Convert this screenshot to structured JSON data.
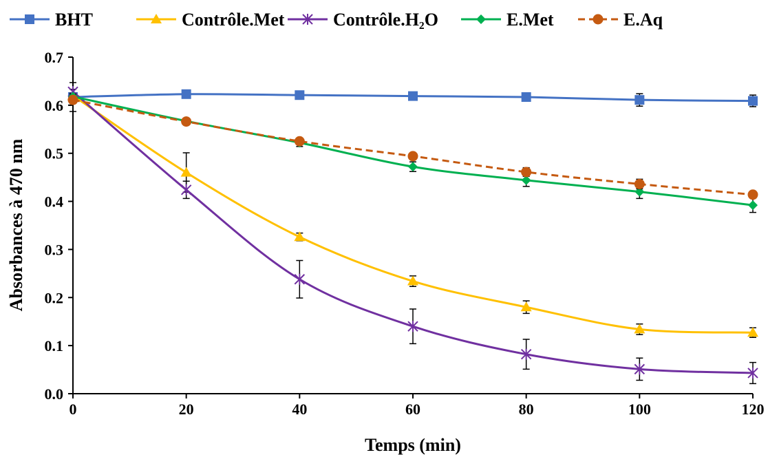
{
  "chart_data": {
    "type": "line",
    "xlabel": "Temps (min)",
    "ylabel": "Absorbances à 470 nm",
    "xlim": [
      0,
      120
    ],
    "ylim": [
      0,
      0.7
    ],
    "x_ticks": [
      "0",
      "20",
      "40",
      "60",
      "80",
      "100",
      "120"
    ],
    "y_ticks": [
      "0.0",
      "0.1",
      "0.2",
      "0.3",
      "0.4",
      "0.5",
      "0.6",
      "0.7"
    ],
    "grid": false,
    "legend_position": "top",
    "x": [
      0,
      20,
      40,
      60,
      80,
      100,
      120
    ],
    "series": [
      {
        "name": "BHT",
        "marker": "square",
        "dashed": false,
        "color": "#4472C4",
        "values": [
          0.617,
          0.623,
          0.621,
          0.619,
          0.617,
          0.611,
          0.609
        ],
        "errors": [
          0.03,
          0.005,
          0.005,
          0.005,
          0.005,
          0.013,
          0.012
        ]
      },
      {
        "name": "Contrôle.Met",
        "marker": "triangle",
        "dashed": false,
        "color": "#FFC000",
        "values": [
          0.62,
          0.46,
          0.326,
          0.234,
          0.18,
          0.134,
          0.127
        ],
        "errors": [
          0.005,
          0.041,
          0.008,
          0.011,
          0.013,
          0.011,
          0.01
        ]
      },
      {
        "name": "Contrôle.H₂O",
        "marker": "star",
        "dashed": false,
        "color": "#7030A0",
        "values": [
          0.628,
          0.424,
          0.238,
          0.14,
          0.082,
          0.051,
          0.043
        ],
        "errors": [
          0.005,
          0.018,
          0.039,
          0.036,
          0.031,
          0.023,
          0.022
        ]
      },
      {
        "name": "E.Met",
        "marker": "diamond",
        "dashed": false,
        "color": "#00B050",
        "values": [
          0.618,
          0.567,
          0.522,
          0.472,
          0.444,
          0.42,
          0.392
        ],
        "errors": [
          0.005,
          0.005,
          0.008,
          0.01,
          0.013,
          0.014,
          0.015
        ]
      },
      {
        "name": "E.Aq",
        "marker": "circle",
        "dashed": true,
        "color": "#C55A11",
        "values": [
          0.611,
          0.566,
          0.525,
          0.494,
          0.461,
          0.436,
          0.414
        ],
        "errors": [
          0.005,
          0.005,
          0.005,
          0.006,
          0.009,
          0.01,
          0.007
        ]
      }
    ]
  }
}
